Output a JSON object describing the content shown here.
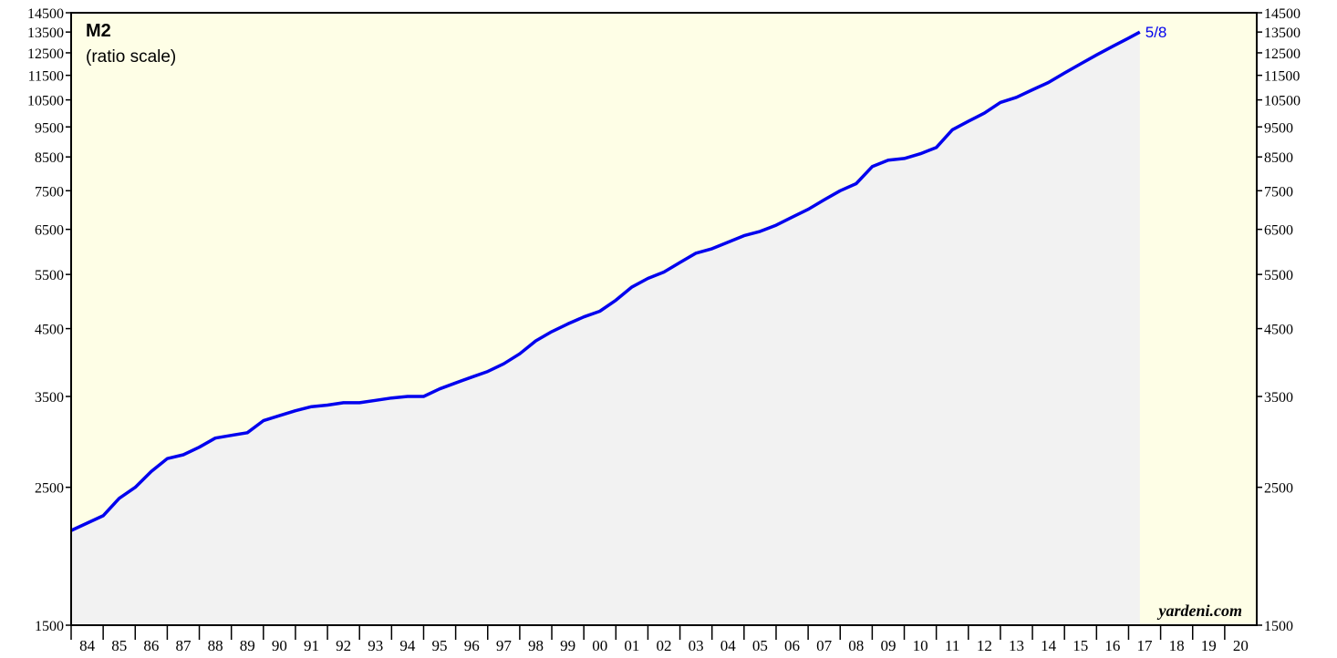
{
  "chart_data": {
    "type": "line",
    "title": "M2",
    "subtitle": "(ratio scale)",
    "annotation": "5/8",
    "watermark": "yardeni.com",
    "log_scale": true,
    "color": "#0000ee",
    "area_color": "#f2f2f2",
    "background": "#fefee6",
    "xlim": [
      1984,
      2021
    ],
    "xticks": [
      {
        "value": 1984,
        "label": "84"
      },
      {
        "value": 1985,
        "label": "85"
      },
      {
        "value": 1986,
        "label": "86"
      },
      {
        "value": 1987,
        "label": "87"
      },
      {
        "value": 1988,
        "label": "88"
      },
      {
        "value": 1989,
        "label": "89"
      },
      {
        "value": 1990,
        "label": "90"
      },
      {
        "value": 1991,
        "label": "91"
      },
      {
        "value": 1992,
        "label": "92"
      },
      {
        "value": 1993,
        "label": "93"
      },
      {
        "value": 1994,
        "label": "94"
      },
      {
        "value": 1995,
        "label": "95"
      },
      {
        "value": 1996,
        "label": "96"
      },
      {
        "value": 1997,
        "label": "97"
      },
      {
        "value": 1998,
        "label": "98"
      },
      {
        "value": 1999,
        "label": "99"
      },
      {
        "value": 2000,
        "label": "00"
      },
      {
        "value": 2001,
        "label": "01"
      },
      {
        "value": 2002,
        "label": "02"
      },
      {
        "value": 2003,
        "label": "03"
      },
      {
        "value": 2004,
        "label": "04"
      },
      {
        "value": 2005,
        "label": "05"
      },
      {
        "value": 2006,
        "label": "06"
      },
      {
        "value": 2007,
        "label": "07"
      },
      {
        "value": 2008,
        "label": "08"
      },
      {
        "value": 2009,
        "label": "09"
      },
      {
        "value": 2010,
        "label": "10"
      },
      {
        "value": 2011,
        "label": "11"
      },
      {
        "value": 2012,
        "label": "12"
      },
      {
        "value": 2013,
        "label": "13"
      },
      {
        "value": 2014,
        "label": "14"
      },
      {
        "value": 2015,
        "label": "15"
      },
      {
        "value": 2016,
        "label": "16"
      },
      {
        "value": 2017,
        "label": "17"
      },
      {
        "value": 2018,
        "label": "18"
      },
      {
        "value": 2019,
        "label": "19"
      },
      {
        "value": 2020,
        "label": "20"
      }
    ],
    "ylim": [
      1500,
      14500
    ],
    "yticks": [
      1500,
      2500,
      3500,
      4500,
      5500,
      6500,
      7500,
      8500,
      9500,
      10500,
      11500,
      12500,
      13500,
      14500
    ],
    "x": [
      1984.0,
      1985.0,
      1985.5,
      1986.0,
      1986.5,
      1987.0,
      1987.5,
      1988.0,
      1988.5,
      1989.0,
      1989.5,
      1990.0,
      1990.5,
      1991.0,
      1991.5,
      1992.0,
      1992.5,
      1993.0,
      1993.5,
      1994.0,
      1994.5,
      1995.0,
      1995.5,
      1996.0,
      1996.5,
      1997.0,
      1997.5,
      1998.0,
      1998.5,
      1999.0,
      1999.5,
      2000.0,
      2000.5,
      2001.0,
      2001.5,
      2002.0,
      2002.5,
      2003.0,
      2003.5,
      2004.0,
      2004.5,
      2005.0,
      2005.5,
      2006.0,
      2006.5,
      2007.0,
      2007.5,
      2008.0,
      2008.5,
      2009.0,
      2009.5,
      2010.0,
      2010.5,
      2011.0,
      2011.5,
      2012.0,
      2012.5,
      2013.0,
      2013.5,
      2014.0,
      2014.5,
      2015.0,
      2015.5,
      2016.0,
      2016.5,
      2017.0,
      2017.35
    ],
    "values": [
      2130,
      2250,
      2400,
      2500,
      2650,
      2780,
      2820,
      2900,
      3000,
      3030,
      3060,
      3200,
      3260,
      3320,
      3370,
      3390,
      3420,
      3420,
      3450,
      3480,
      3500,
      3500,
      3600,
      3680,
      3760,
      3840,
      3950,
      4100,
      4300,
      4450,
      4580,
      4700,
      4800,
      5000,
      5250,
      5420,
      5550,
      5750,
      5950,
      6050,
      6200,
      6350,
      6450,
      6600,
      6800,
      7000,
      7250,
      7500,
      7700,
      8200,
      8400,
      8450,
      8600,
      8800,
      9400,
      9700,
      10000,
      10400,
      10600,
      10900,
      11200,
      11600,
      12000,
      12400,
      12800,
      13200,
      13500
    ]
  }
}
